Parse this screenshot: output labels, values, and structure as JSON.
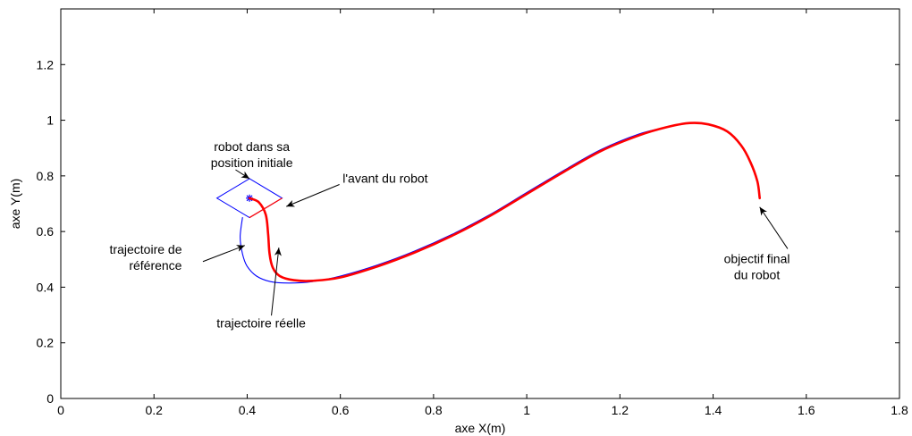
{
  "chart_data": {
    "type": "line",
    "xlabel": "axe X(m)",
    "ylabel": "axe Y(m)",
    "xlim": [
      0,
      1.8
    ],
    "ylim": [
      0,
      1.4
    ],
    "x_ticks": [
      "0",
      "0.2",
      "0.4",
      "0.6",
      "0.8",
      "1",
      "1.2",
      "1.4",
      "1.6",
      "1.8"
    ],
    "y_ticks": [
      "0",
      "0.2",
      "0.4",
      "0.6",
      "0.8",
      "1",
      "1.2"
    ],
    "grid": false,
    "colors": {
      "reference": "#0000ff",
      "actual": "#ff0000",
      "arrow": "#000000"
    },
    "series": [
      {
        "id": "reference",
        "x": [
          0.39,
          0.385,
          0.39,
          0.4,
          0.42,
          0.45,
          0.49,
          0.54,
          0.6,
          0.68,
          0.76,
          0.84,
          0.92,
          1.0,
          1.08,
          1.16,
          1.24,
          1.3,
          1.35,
          1.39,
          1.43,
          1.46,
          1.48,
          1.495,
          1.5
        ],
        "y": [
          0.65,
          0.58,
          0.52,
          0.475,
          0.44,
          0.42,
          0.415,
          0.42,
          0.44,
          0.48,
          0.53,
          0.59,
          0.66,
          0.74,
          0.82,
          0.895,
          0.95,
          0.975,
          0.99,
          0.985,
          0.96,
          0.91,
          0.85,
          0.78,
          0.72
        ]
      },
      {
        "id": "actual",
        "x": [
          0.405,
          0.425,
          0.44,
          0.445,
          0.448,
          0.455,
          0.47,
          0.5,
          0.54,
          0.6,
          0.68,
          0.76,
          0.84,
          0.92,
          1.0,
          1.08,
          1.16,
          1.24,
          1.3,
          1.35,
          1.39,
          1.43,
          1.46,
          1.48,
          1.495,
          1.5
        ],
        "y": [
          0.72,
          0.705,
          0.66,
          0.59,
          0.52,
          0.47,
          0.44,
          0.425,
          0.423,
          0.435,
          0.475,
          0.525,
          0.585,
          0.655,
          0.735,
          0.815,
          0.89,
          0.945,
          0.975,
          0.99,
          0.985,
          0.96,
          0.91,
          0.85,
          0.78,
          0.72
        ]
      }
    ],
    "robot": {
      "center": [
        0.405,
        0.72
      ],
      "diamond": [
        [
          0.405,
          0.79
        ],
        [
          0.475,
          0.72
        ],
        [
          0.405,
          0.65
        ],
        [
          0.335,
          0.72
        ]
      ],
      "front_edge": [
        [
          0.405,
          0.65
        ],
        [
          0.475,
          0.72
        ]
      ]
    },
    "annotations": [
      {
        "lines": [
          "robot dans sa",
          "position initiale"
        ],
        "anchor": "middle",
        "text_at": [
          0.41,
          0.89
        ],
        "arrow_from": [
          0.375,
          0.822
        ],
        "arrow_to": [
          0.405,
          0.79
        ]
      },
      {
        "lines": [
          "l'avant du robot"
        ],
        "anchor": "start",
        "text_at": [
          0.605,
          0.775
        ],
        "arrow_from": [
          0.598,
          0.769
        ],
        "arrow_to": [
          0.484,
          0.69
        ]
      },
      {
        "lines": [
          "trajectoire de",
          "référence"
        ],
        "anchor": "end",
        "text_at": [
          0.26,
          0.52
        ],
        "arrow_from": [
          0.305,
          0.492
        ],
        "arrow_to": [
          0.395,
          0.55
        ]
      },
      {
        "lines": [
          "trajectoire réelle"
        ],
        "anchor": "middle",
        "text_at": [
          0.43,
          0.255
        ],
        "arrow_from": [
          0.452,
          0.298
        ],
        "arrow_to": [
          0.468,
          0.542
        ]
      },
      {
        "lines": [
          "objectif final",
          "du robot"
        ],
        "anchor": "middle",
        "text_at": [
          1.494,
          0.487
        ],
        "arrow_from": [
          1.56,
          0.538
        ],
        "arrow_to": [
          1.5,
          0.688
        ]
      }
    ]
  }
}
